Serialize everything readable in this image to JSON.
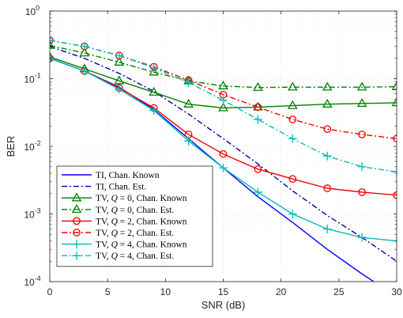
{
  "chart_data": {
    "type": "line",
    "xlabel": "SNR (dB)",
    "ylabel": "BER",
    "xlim": [
      0,
      30
    ],
    "ylim": [
      0.0001,
      1
    ],
    "yscale": "log",
    "grid": true,
    "legend_position": "bottom-left",
    "x_ticks": [
      {
        "value": 0,
        "label": "0"
      },
      {
        "value": 5,
        "label": "5"
      },
      {
        "value": 10,
        "label": "10"
      },
      {
        "value": 15,
        "label": "15"
      },
      {
        "value": 20,
        "label": "20"
      },
      {
        "value": 25,
        "label": "25"
      },
      {
        "value": 30,
        "label": "30"
      }
    ],
    "y_ticks": [
      {
        "value": 0.0001,
        "base": "10",
        "exp": "-4"
      },
      {
        "value": 0.001,
        "base": "10",
        "exp": "-3"
      },
      {
        "value": 0.01,
        "base": "10",
        "exp": "-2"
      },
      {
        "value": 0.1,
        "base": "10",
        "exp": "-1"
      },
      {
        "value": 1,
        "base": "10",
        "exp": "0"
      }
    ],
    "series": [
      {
        "name": "TI, Chan. Known",
        "label_parts": [
          "TI, Chan. Known"
        ],
        "color": "#0000ff",
        "dash": "solid",
        "marker": "none",
        "x": [
          0,
          3,
          6,
          9,
          12,
          15,
          18,
          21,
          24,
          27,
          30
        ],
        "y": [
          0.2,
          0.13,
          0.075,
          0.035,
          0.013,
          0.0048,
          0.0018,
          0.00075,
          0.0003,
          0.00013,
          6e-05
        ]
      },
      {
        "name": "TI, Chan. Est.",
        "label_parts": [
          "TI, Chan. Est."
        ],
        "color": "#0000b0",
        "dash": "dashdot",
        "marker": "none",
        "x": [
          0,
          3,
          6,
          9,
          12,
          15,
          18,
          21,
          24,
          27,
          30
        ],
        "y": [
          0.3,
          0.2,
          0.12,
          0.065,
          0.03,
          0.013,
          0.0055,
          0.0022,
          0.00095,
          0.00045,
          0.0002
        ]
      },
      {
        "name": "TV, Q = 0, Chan. Known",
        "label_parts": [
          "TV, ",
          "Q",
          " = 0, Chan. Known"
        ],
        "color": "#008000",
        "dash": "solid",
        "marker": "triangle",
        "x": [
          0,
          3,
          6,
          9,
          12,
          15,
          18,
          21,
          24,
          27,
          30
        ],
        "y": [
          0.21,
          0.14,
          0.093,
          0.063,
          0.042,
          0.037,
          0.038,
          0.04,
          0.042,
          0.043,
          0.044
        ]
      },
      {
        "name": "TV, Q = 0, Chan. Est.",
        "label_parts": [
          "TV, ",
          "Q",
          " = 0, Chan. Est."
        ],
        "color": "#008000",
        "dash": "dashdot",
        "marker": "triangle",
        "x": [
          0,
          3,
          6,
          9,
          12,
          15,
          18,
          21,
          24,
          27,
          30
        ],
        "y": [
          0.31,
          0.24,
          0.175,
          0.125,
          0.093,
          0.078,
          0.074,
          0.075,
          0.075,
          0.075,
          0.076
        ]
      },
      {
        "name": "TV, Q = 2, Chan. Known",
        "label_parts": [
          "TV, ",
          "Q",
          " = 2, Chan. Known"
        ],
        "color": "#ee0000",
        "dash": "solid",
        "marker": "circle",
        "x": [
          0,
          3,
          6,
          9,
          12,
          15,
          18,
          21,
          24,
          27,
          30
        ],
        "y": [
          0.2,
          0.13,
          0.073,
          0.037,
          0.015,
          0.0077,
          0.0046,
          0.0033,
          0.0024,
          0.0021,
          0.0019
        ]
      },
      {
        "name": "TV, Q = 2, Chan. Est.",
        "label_parts": [
          "TV, ",
          "Q",
          " = 2, Chan. Est."
        ],
        "color": "#ee0000",
        "dash": "dashdot",
        "marker": "circle",
        "x": [
          0,
          3,
          6,
          9,
          12,
          15,
          18,
          21,
          24,
          27,
          30
        ],
        "y": [
          0.37,
          0.3,
          0.22,
          0.15,
          0.095,
          0.058,
          0.038,
          0.025,
          0.018,
          0.015,
          0.013
        ]
      },
      {
        "name": "TV, Q = 4, Chan. Known",
        "label_parts": [
          "TV, ",
          "Q",
          " = 4, Chan. Known"
        ],
        "color": "#00bcbc",
        "dash": "solid",
        "marker": "plus",
        "x": [
          0,
          3,
          6,
          9,
          12,
          15,
          18,
          21,
          24,
          27,
          30
        ],
        "y": [
          0.2,
          0.13,
          0.07,
          0.034,
          0.012,
          0.0048,
          0.0021,
          0.001,
          0.0006,
          0.00045,
          0.0004
        ]
      },
      {
        "name": "TV, Q = 4, Chan. Est.",
        "label_parts": [
          "TV, ",
          "Q",
          " = 4, Chan. Est."
        ],
        "color": "#00bcbc",
        "dash": "dashdot",
        "marker": "plus",
        "x": [
          0,
          3,
          6,
          9,
          12,
          15,
          18,
          21,
          24,
          27,
          30
        ],
        "y": [
          0.37,
          0.3,
          0.22,
          0.145,
          0.088,
          0.048,
          0.025,
          0.013,
          0.0072,
          0.005,
          0.0042
        ]
      }
    ]
  }
}
